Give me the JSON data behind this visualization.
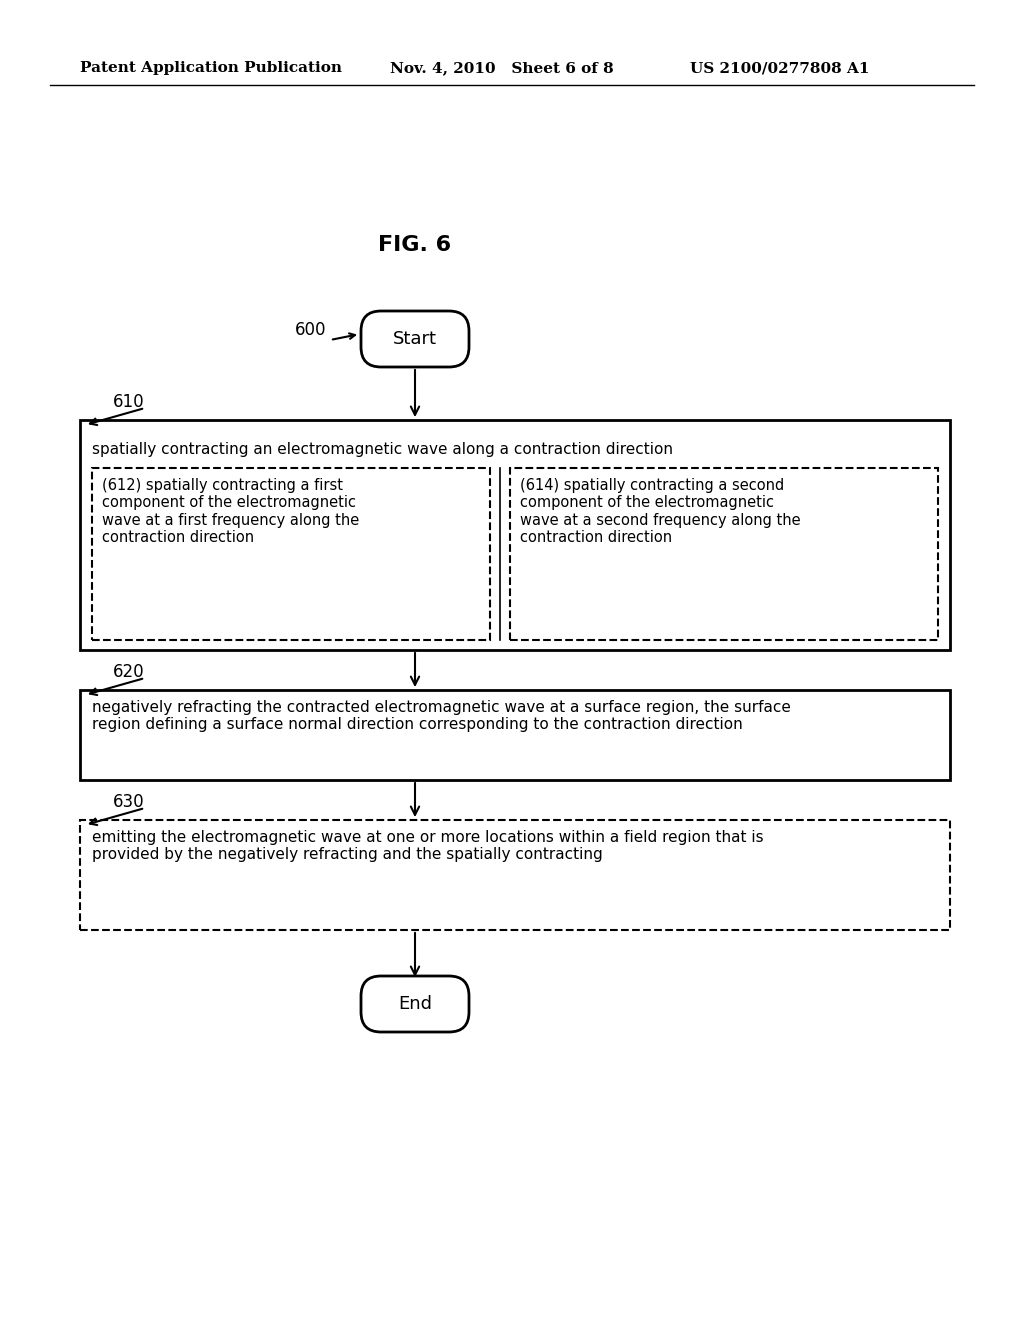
{
  "bg_color": "#ffffff",
  "header_left": "Patent Application Publication",
  "header_mid": "Nov. 4, 2010   Sheet 6 of 8",
  "header_right": "US 2100/0277808 A1",
  "fig_label": "FIG. 6",
  "start_label": "Start",
  "end_label": "End",
  "label_600": "600",
  "label_610": "610",
  "label_620": "620",
  "label_630": "630",
  "box610_title": "spatially contracting an electromagnetic wave along a contraction direction",
  "box612_text": "(612) spatially contracting a first\ncomponent of the electromagnetic\nwave at a first frequency along the\ncontraction direction",
  "box614_text": "(614) spatially contracting a second\ncomponent of the electromagnetic\nwave at a second frequency along the\ncontraction direction",
  "box620_text": "negatively refracting the contracted electromagnetic wave at a surface region, the surface\nregion defining a surface normal direction corresponding to the contraction direction",
  "box630_text": "emitting the electromagnetic wave at one or more locations within a field region that is\nprovided by the negatively refracting and the spatially contracting",
  "text_color": "#000000",
  "box_edge_color": "#000000",
  "arrow_color": "#000000"
}
